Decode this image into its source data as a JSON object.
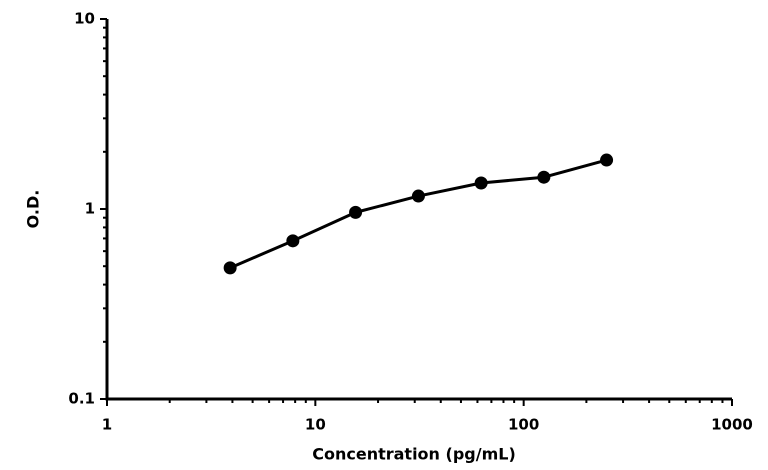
{
  "chart_data": {
    "type": "line",
    "x_label": "Concentration (pg/mL)",
    "y_label": "O.D.",
    "x": [
      3.9,
      7.8,
      15.6,
      31.25,
      62.5,
      125,
      250
    ],
    "series": [
      {
        "name": "",
        "color": "#000000",
        "values": [
          0.49,
          0.68,
          0.96,
          1.17,
          1.37,
          1.47,
          1.81
        ]
      }
    ],
    "xlim": [
      1,
      1000
    ],
    "ylim": [
      0.1,
      10
    ],
    "xticks": [
      1,
      10,
      100,
      1000
    ],
    "yticks": [
      0.1,
      1,
      10
    ],
    "log_x": true,
    "log_y": true,
    "grid": false
  }
}
